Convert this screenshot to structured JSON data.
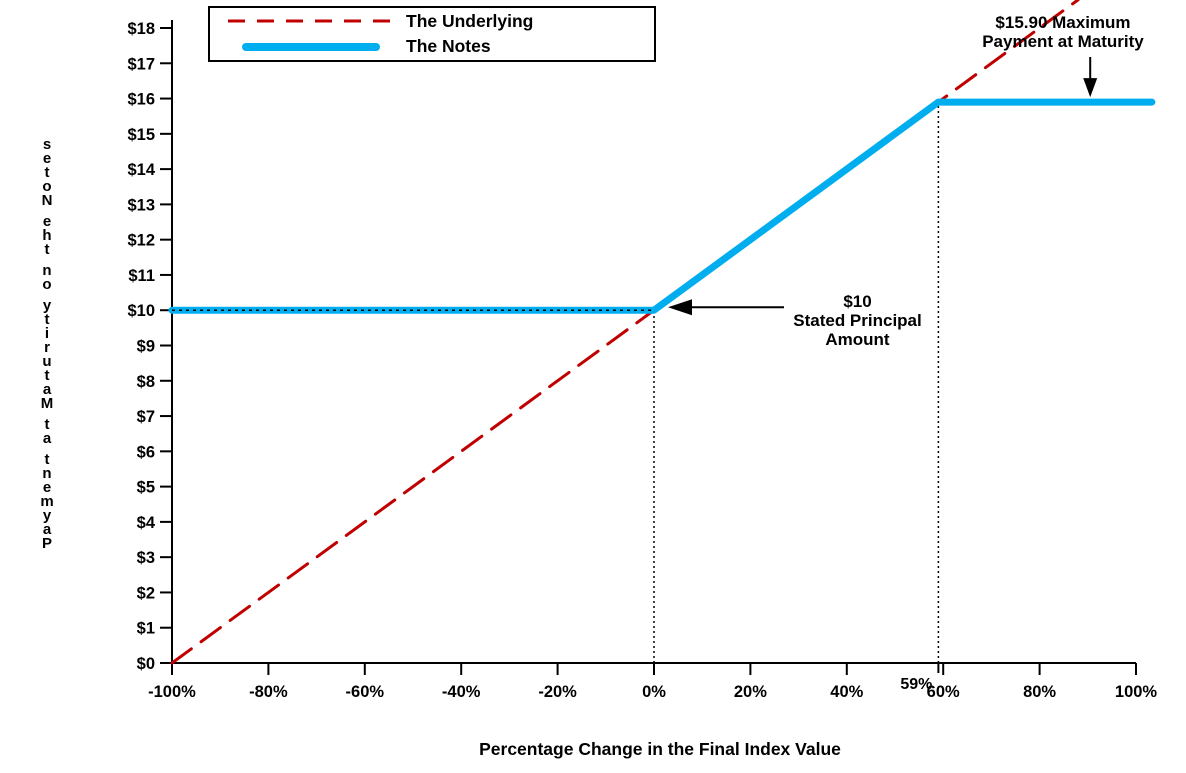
{
  "chart_data": {
    "type": "line",
    "xlabel": "Percentage Change in the Final Index Value",
    "ylabel": "Payment at Maturity on the Notes",
    "xlim": [
      -100,
      100
    ],
    "ylim": [
      0,
      18
    ],
    "grid": false,
    "colors": {
      "underlying": "#C00000",
      "notes": "#00AEEF",
      "axis": "#000000"
    },
    "x_ticks": [
      {
        "label": "-100%",
        "value": -100
      },
      {
        "label": "-80%",
        "value": -80
      },
      {
        "label": "-60%",
        "value": -60
      },
      {
        "label": "-40%",
        "value": -40
      },
      {
        "label": "-20%",
        "value": -20
      },
      {
        "label": "0%",
        "value": 0
      },
      {
        "label": "20%",
        "value": 20
      },
      {
        "label": "40%",
        "value": 40
      },
      {
        "label": "60%",
        "value": 60
      },
      {
        "label": "80%",
        "value": 80
      },
      {
        "label": "100%",
        "value": 100
      }
    ],
    "x_extra_tick": {
      "label": "59%",
      "value": 59
    },
    "y_ticks": [
      {
        "label": "$0",
        "value": 0
      },
      {
        "label": "$1",
        "value": 1
      },
      {
        "label": "$2",
        "value": 2
      },
      {
        "label": "$3",
        "value": 3
      },
      {
        "label": "$4",
        "value": 4
      },
      {
        "label": "$5",
        "value": 5
      },
      {
        "label": "$6",
        "value": 6
      },
      {
        "label": "$7",
        "value": 7
      },
      {
        "label": "$8",
        "value": 8
      },
      {
        "label": "$9",
        "value": 9
      },
      {
        "label": "$10",
        "value": 10
      },
      {
        "label": "$11",
        "value": 11
      },
      {
        "label": "$12",
        "value": 12
      },
      {
        "label": "$13",
        "value": 13
      },
      {
        "label": "$14",
        "value": 14
      },
      {
        "label": "$15",
        "value": 15
      },
      {
        "label": "$16",
        "value": 16
      },
      {
        "label": "$17",
        "value": 17
      },
      {
        "label": "$18",
        "value": 18
      }
    ],
    "legend": {
      "position": "top-left",
      "items": [
        {
          "label": "The Underlying",
          "color": "#C00000",
          "style": "dashed"
        },
        {
          "label": "The Notes",
          "color": "#00AEEF",
          "style": "solid-thick"
        }
      ]
    },
    "series": [
      {
        "name": "The Underlying",
        "color": "#C00000",
        "style": "dashed",
        "width": 3,
        "points": [
          [
            -100,
            0
          ],
          [
            88,
            18.8
          ]
        ]
      },
      {
        "name": "The Notes",
        "color": "#00AEEF",
        "style": "solid",
        "width": 7,
        "points": [
          [
            -100,
            10
          ],
          [
            0,
            10
          ],
          [
            59,
            15.9
          ],
          [
            103.3,
            15.9
          ]
        ]
      }
    ],
    "key_points": {
      "stated_principal": 10,
      "maximum_payment": 15.9,
      "cap_percentage": 59
    },
    "guides": [
      {
        "type": "v",
        "x": 0,
        "y0": 0,
        "y1": 10
      },
      {
        "type": "v",
        "x": 59,
        "y0": 0,
        "y1": 15.9
      },
      {
        "type": "h",
        "y": 10,
        "x0": -100,
        "x1": 0
      }
    ],
    "annotations": [
      {
        "id": "max",
        "text_lines": [
          "$15.90 Maximum",
          "Payment at Maturity"
        ],
        "arrow": "down",
        "at": [
          90.5,
          15.9
        ]
      },
      {
        "id": "principal",
        "text_lines": [
          "$10",
          "Stated Principal",
          "Amount"
        ],
        "arrow": "left",
        "at": [
          0,
          10
        ]
      }
    ]
  }
}
